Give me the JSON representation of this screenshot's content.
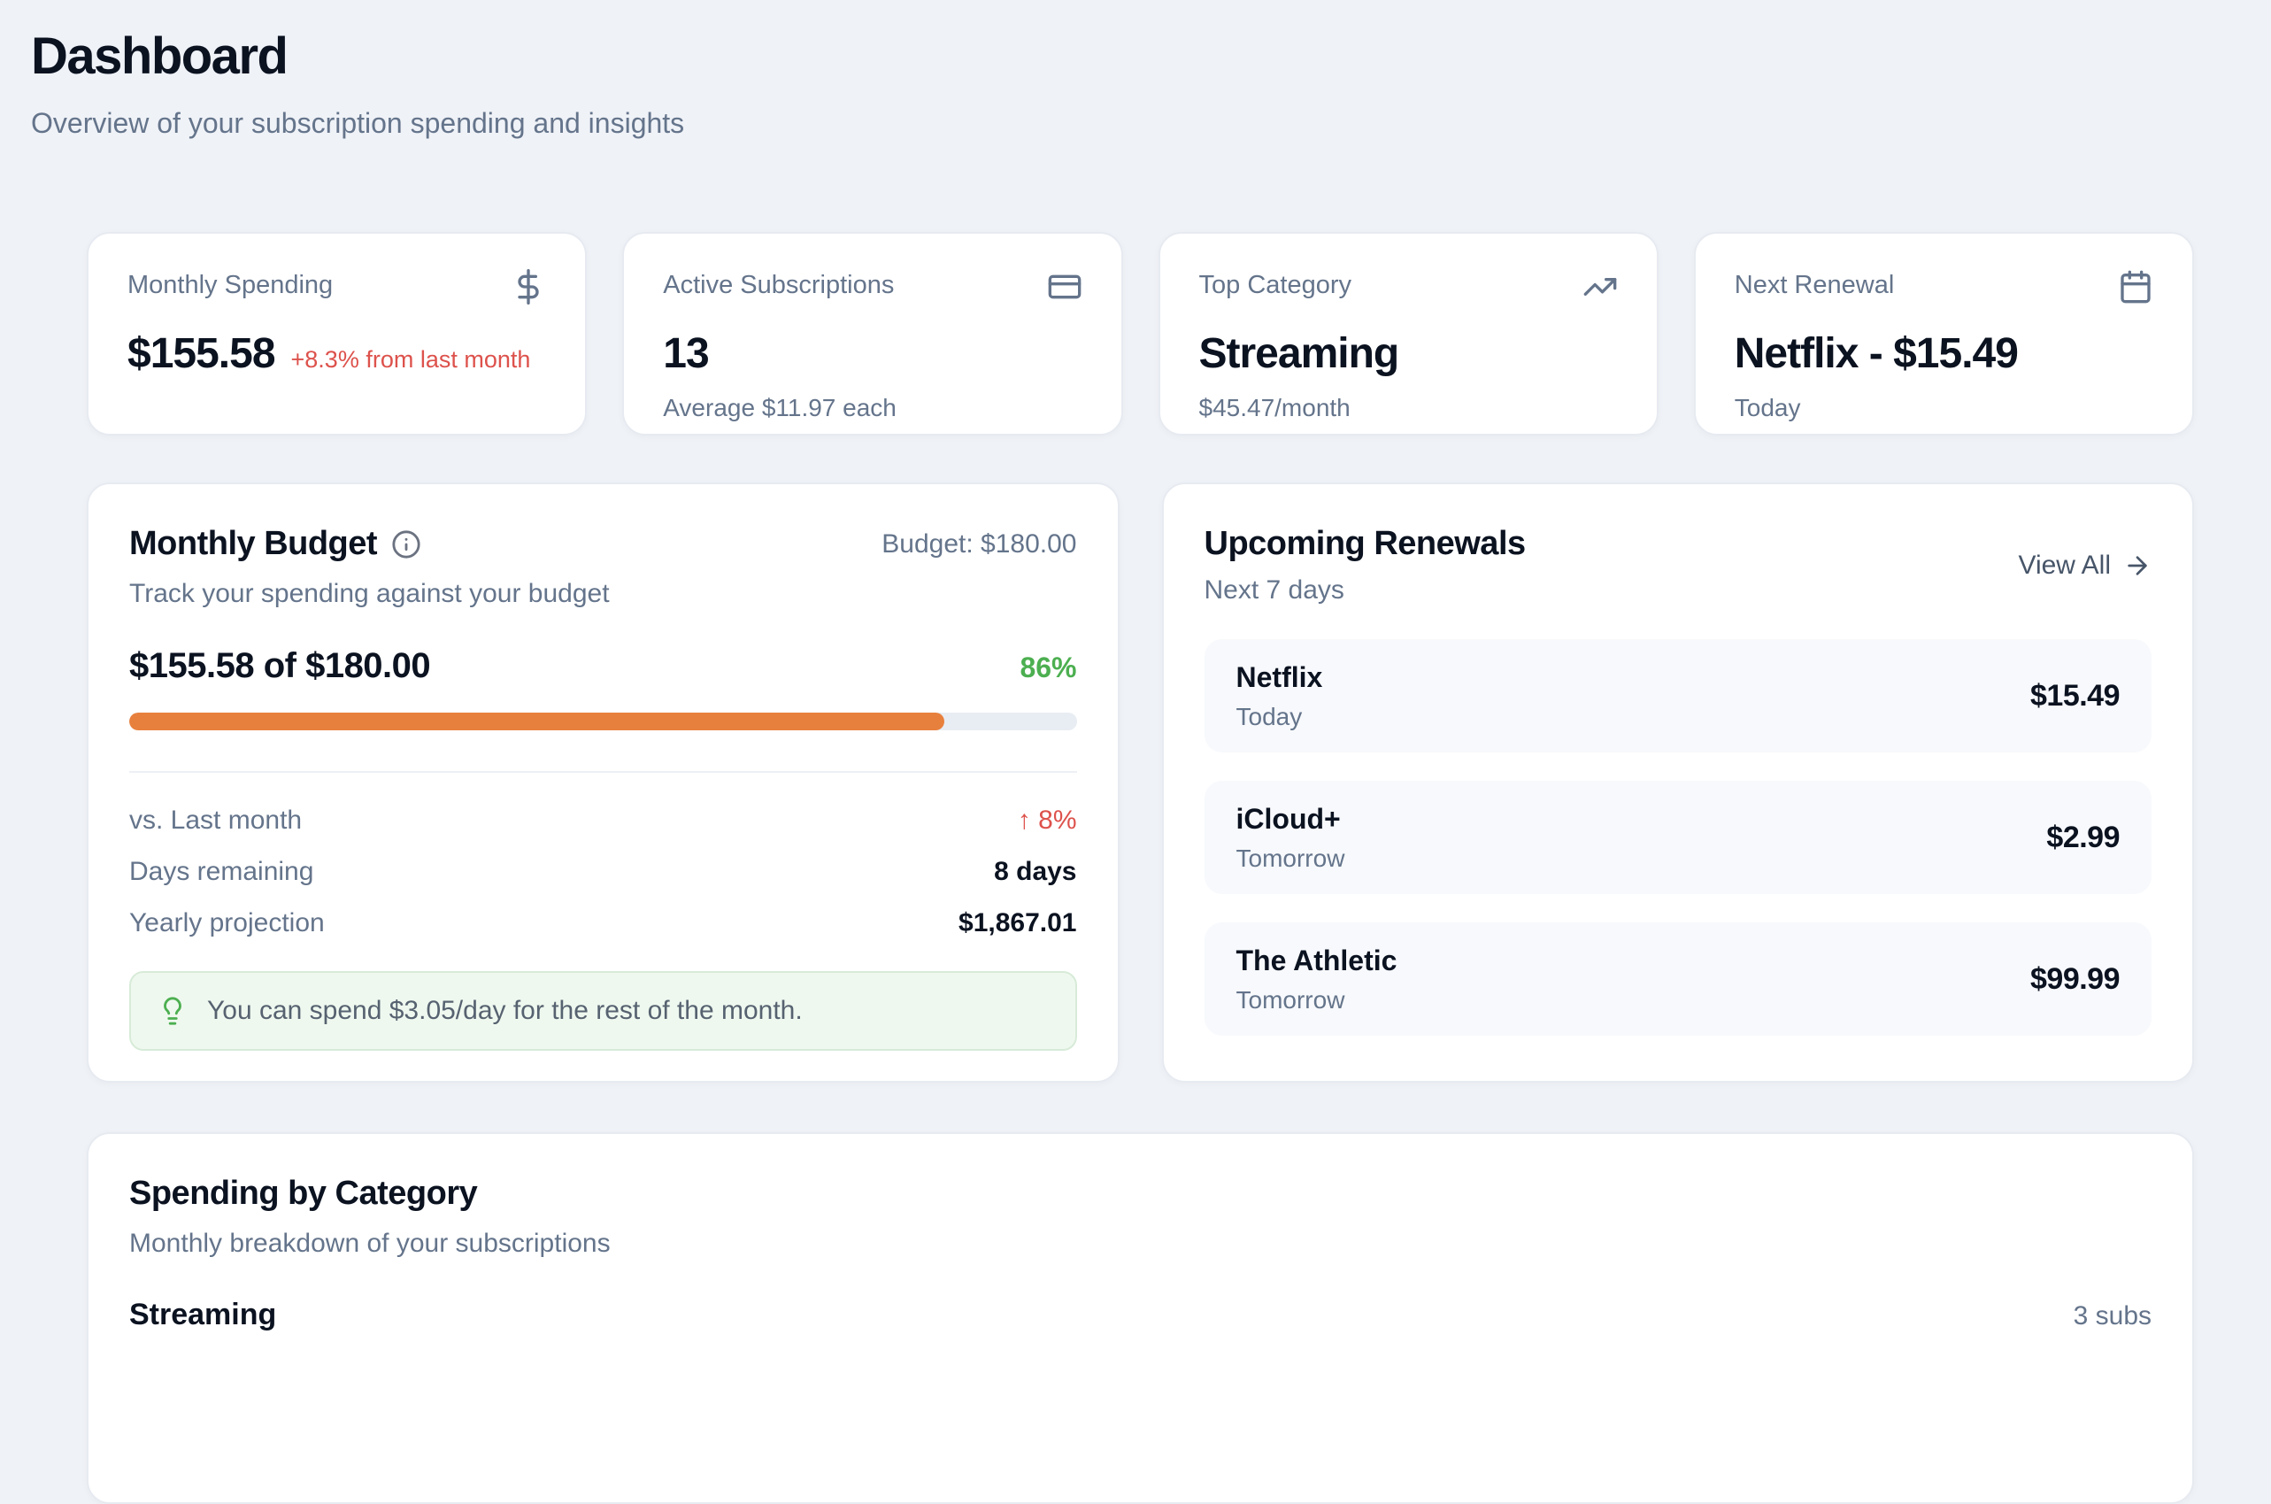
{
  "header": {
    "title": "Dashboard",
    "subtitle": "Overview of your subscription spending and insights"
  },
  "stats": [
    {
      "label": "Monthly Spending",
      "icon": "dollar-sign-icon",
      "value": "$155.58",
      "delta": "+8.3% from last month"
    },
    {
      "label": "Active Subscriptions",
      "icon": "credit-card-icon",
      "value": "13",
      "sub": "Average $11.97 each"
    },
    {
      "label": "Top Category",
      "icon": "trending-up-icon",
      "value": "Streaming",
      "sub": "$45.47/month"
    },
    {
      "label": "Next Renewal",
      "icon": "calendar-icon",
      "value": "Netflix - $15.49",
      "sub": "Today"
    }
  ],
  "budget": {
    "title": "Monthly Budget",
    "budget_label": "Budget: $180.00",
    "subtitle": "Track your spending against your budget",
    "spent_line": "$155.58 of $180.00",
    "percent": "86%",
    "percent_value": 86,
    "rows": [
      {
        "label": "vs. Last month",
        "arrow": "↑",
        "value": "8%"
      },
      {
        "label": "Days remaining",
        "value": "8 days"
      },
      {
        "label": "Yearly projection",
        "value": "$1,867.01"
      }
    ],
    "tip": "You can spend $3.05/day for the rest of the month."
  },
  "renewals": {
    "title": "Upcoming Renewals",
    "subtitle": "Next 7 days",
    "view_all": "View All",
    "items": [
      {
        "name": "Netflix",
        "date": "Today",
        "price": "$15.49"
      },
      {
        "name": "iCloud+",
        "date": "Tomorrow",
        "price": "$2.99"
      },
      {
        "name": "The Athletic",
        "date": "Tomorrow",
        "price": "$99.99"
      }
    ]
  },
  "category": {
    "title": "Spending by Category",
    "subtitle": "Monthly breakdown of your subscriptions",
    "rows": [
      {
        "name": "Streaming",
        "count": "3 subs"
      }
    ]
  },
  "colors": {
    "page_background": "#eff2f7",
    "progress_orange": "#e8803d",
    "positive_green": "#4caf50",
    "negative_red": "#dd524c",
    "tip_background": "#eff8ef",
    "tip_border": "#d7ebd8",
    "muted_text": "#64748b",
    "dark_text": "#0b1220"
  }
}
